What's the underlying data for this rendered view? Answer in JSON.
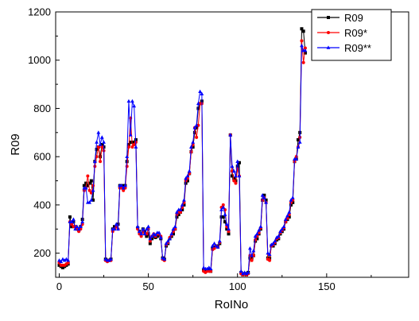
{
  "chart_data": {
    "type": "line",
    "title": "",
    "xlabel": "RoINo",
    "ylabel": "R09",
    "xlim": [
      -2,
      196
    ],
    "ylim": [
      100,
      1200
    ],
    "xticks": [
      0,
      50,
      100,
      150
    ],
    "yticks": [
      200,
      400,
      600,
      800,
      1000,
      1200
    ],
    "grid": false,
    "legend_position": "top-right",
    "series": [
      {
        "name": "R09",
        "color": "#000000",
        "marker": "square",
        "values": [
          150,
          145,
          140,
          145,
          150,
          155,
          350,
          310,
          330,
          310,
          300,
          295,
          310,
          340,
          480,
          490,
          480,
          490,
          500,
          420,
          580,
          630,
          640,
          600,
          650,
          640,
          175,
          170,
          170,
          175,
          300,
          310,
          310,
          320,
          480,
          475,
          480,
          480,
          580,
          650,
          660,
          660,
          660,
          670,
          305,
          290,
          280,
          300,
          290,
          270,
          280,
          240,
          260,
          270,
          265,
          270,
          275,
          260,
          180,
          175,
          230,
          240,
          260,
          270,
          280,
          300,
          350,
          360,
          370,
          380,
          400,
          490,
          500,
          530,
          620,
          640,
          700,
          720,
          800,
          820,
          830,
          130,
          125,
          130,
          130,
          125,
          220,
          225,
          230,
          230,
          240,
          350,
          350,
          330,
          300,
          280,
          690,
          520,
          510,
          500,
          560,
          575,
          120,
          110,
          115,
          110,
          120,
          180,
          180,
          190,
          250,
          260,
          280,
          300,
          420,
          440,
          420,
          180,
          180,
          230,
          230,
          240,
          255,
          260,
          280,
          290,
          300,
          330,
          340,
          350,
          400,
          410,
          580,
          590,
          670,
          700,
          1130,
          1120,
          1030
        ]
      },
      {
        "name": "R09*",
        "color": "#ff0000",
        "marker": "circle",
        "values": [
          160,
          150,
          150,
          150,
          155,
          160,
          330,
          320,
          310,
          310,
          300,
          290,
          300,
          320,
          460,
          470,
          520,
          460,
          450,
          480,
          560,
          600,
          640,
          580,
          640,
          625,
          170,
          165,
          170,
          170,
          290,
          300,
          310,
          300,
          470,
          470,
          460,
          470,
          560,
          640,
          760,
          640,
          650,
          660,
          300,
          280,
          270,
          290,
          280,
          280,
          300,
          250,
          270,
          280,
          270,
          280,
          280,
          270,
          175,
          170,
          235,
          245,
          265,
          275,
          290,
          300,
          360,
          370,
          370,
          390,
          410,
          500,
          510,
          530,
          620,
          650,
          720,
          680,
          730,
          820,
          820,
          125,
          120,
          125,
          125,
          125,
          215,
          220,
          230,
          225,
          245,
          390,
          400,
          380,
          310,
          290,
          690,
          540,
          500,
          490,
          550,
          520,
          115,
          110,
          115,
          110,
          115,
          190,
          170,
          190,
          255,
          270,
          285,
          305,
          420,
          430,
          410,
          175,
          170,
          230,
          235,
          245,
          260,
          265,
          285,
          295,
          305,
          330,
          345,
          360,
          410,
          420,
          580,
          600,
          640,
          680,
          1080,
          990,
          1050
        ]
      },
      {
        "name": "R09**",
        "color": "#0000ff",
        "marker": "triangle",
        "values": [
          170,
          165,
          175,
          170,
          175,
          170,
          330,
          330,
          340,
          300,
          310,
          300,
          310,
          330,
          470,
          470,
          410,
          410,
          420,
          460,
          580,
          660,
          700,
          650,
          680,
          660,
          175,
          170,
          170,
          175,
          300,
          300,
          320,
          300,
          480,
          480,
          470,
          480,
          600,
          830,
          690,
          830,
          810,
          640,
          310,
          290,
          280,
          300,
          280,
          300,
          310,
          260,
          270,
          280,
          275,
          285,
          285,
          265,
          180,
          175,
          240,
          250,
          260,
          280,
          300,
          310,
          370,
          380,
          380,
          400,
          420,
          510,
          520,
          540,
          640,
          660,
          720,
          730,
          820,
          870,
          860,
          140,
          135,
          135,
          140,
          135,
          230,
          240,
          230,
          225,
          250,
          380,
          390,
          360,
          320,
          300,
          690,
          560,
          540,
          520,
          580,
          520,
          125,
          115,
          120,
          115,
          120,
          220,
          190,
          210,
          270,
          280,
          295,
          310,
          440,
          430,
          410,
          200,
          195,
          235,
          240,
          250,
          265,
          270,
          290,
          300,
          310,
          340,
          355,
          370,
          420,
          430,
          590,
          590,
          640,
          660,
          1060,
          1040,
          1040
        ]
      }
    ]
  }
}
